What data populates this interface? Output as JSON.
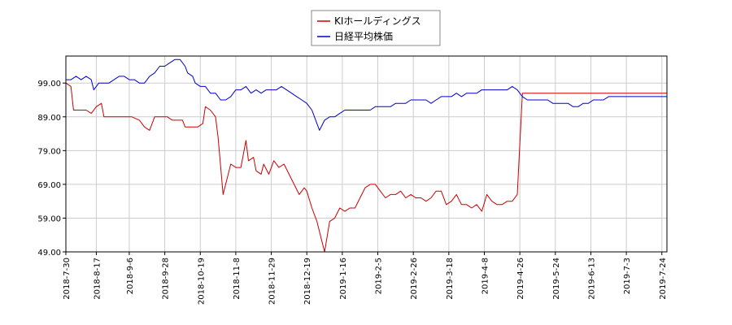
{
  "chart_data": {
    "type": "line",
    "title": "",
    "xlabel": "",
    "ylabel": "",
    "ylim": [
      49,
      107
    ],
    "y_ticks": [
      "49.00",
      "59.00",
      "69.00",
      "79.00",
      "89.00",
      "99.00"
    ],
    "y_tick_values": [
      49,
      59,
      69,
      79,
      89,
      99
    ],
    "x_ticks": [
      "2018-7-30",
      "2018-8-17",
      "2018-9-6",
      "2018-9-28",
      "2018-10-19",
      "2018-11-8",
      "2018-11-29",
      "2018-12-19",
      "2019-1-16",
      "2019-2-5",
      "2019-2-26",
      "2019-3-18",
      "2019-4-8",
      "2019-4-26",
      "2019-5-24",
      "2019-6-13",
      "2019-7-3",
      "2019-7-24"
    ],
    "x_tick_index": [
      0,
      12,
      25,
      39,
      53,
      67,
      81,
      95,
      109,
      123,
      137,
      151,
      165,
      179,
      193,
      207,
      221,
      235
    ],
    "x_count": 238,
    "grid": true,
    "legend_position": "top-center",
    "series": [
      {
        "name": "KIホールディングス",
        "color": "#cc0000",
        "points": [
          [
            0,
            99
          ],
          [
            2,
            98
          ],
          [
            3,
            91
          ],
          [
            6,
            91
          ],
          [
            8,
            91
          ],
          [
            10,
            90
          ],
          [
            12,
            92
          ],
          [
            14,
            93
          ],
          [
            15,
            89
          ],
          [
            18,
            89
          ],
          [
            20,
            89
          ],
          [
            23,
            89
          ],
          [
            26,
            89
          ],
          [
            29,
            88
          ],
          [
            31,
            86
          ],
          [
            33,
            85
          ],
          [
            35,
            89
          ],
          [
            38,
            89
          ],
          [
            40,
            89
          ],
          [
            42,
            88
          ],
          [
            44,
            88
          ],
          [
            46,
            88
          ],
          [
            47,
            86
          ],
          [
            50,
            86
          ],
          [
            52,
            86
          ],
          [
            54,
            87
          ],
          [
            55,
            92
          ],
          [
            57,
            91
          ],
          [
            59,
            89
          ],
          [
            60,
            83
          ],
          [
            62,
            66
          ],
          [
            64,
            72
          ],
          [
            65,
            75
          ],
          [
            67,
            74
          ],
          [
            69,
            74
          ],
          [
            71,
            82
          ],
          [
            72,
            76
          ],
          [
            74,
            77
          ],
          [
            75,
            73
          ],
          [
            77,
            72
          ],
          [
            78,
            75
          ],
          [
            80,
            72
          ],
          [
            82,
            76
          ],
          [
            84,
            74
          ],
          [
            86,
            75
          ],
          [
            88,
            72
          ],
          [
            90,
            69
          ],
          [
            92,
            66
          ],
          [
            94,
            68
          ],
          [
            95,
            67
          ],
          [
            97,
            62
          ],
          [
            99,
            58
          ],
          [
            101,
            52
          ],
          [
            102,
            49
          ],
          [
            104,
            58
          ],
          [
            106,
            59
          ],
          [
            108,
            62
          ],
          [
            110,
            61
          ],
          [
            112,
            62
          ],
          [
            114,
            62
          ],
          [
            116,
            65
          ],
          [
            118,
            68
          ],
          [
            120,
            69
          ],
          [
            122,
            69
          ],
          [
            124,
            67
          ],
          [
            126,
            65
          ],
          [
            128,
            66
          ],
          [
            130,
            66
          ],
          [
            132,
            67
          ],
          [
            134,
            65
          ],
          [
            136,
            66
          ],
          [
            138,
            65
          ],
          [
            140,
            65
          ],
          [
            142,
            64
          ],
          [
            144,
            65
          ],
          [
            146,
            67
          ],
          [
            148,
            67
          ],
          [
            150,
            63
          ],
          [
            152,
            64
          ],
          [
            154,
            66
          ],
          [
            156,
            63
          ],
          [
            158,
            63
          ],
          [
            160,
            62
          ],
          [
            162,
            63
          ],
          [
            164,
            61
          ],
          [
            166,
            66
          ],
          [
            168,
            64
          ],
          [
            170,
            63
          ],
          [
            172,
            63
          ],
          [
            174,
            64
          ],
          [
            176,
            64
          ],
          [
            178,
            66
          ],
          [
            180,
            96
          ],
          [
            183,
            96
          ],
          [
            186,
            96
          ],
          [
            189,
            96
          ],
          [
            192,
            96
          ],
          [
            195,
            96
          ],
          [
            198,
            96
          ],
          [
            201,
            96
          ],
          [
            204,
            96
          ],
          [
            207,
            96
          ],
          [
            210,
            96
          ],
          [
            213,
            96
          ],
          [
            216,
            96
          ],
          [
            219,
            96
          ],
          [
            222,
            96
          ],
          [
            225,
            96
          ],
          [
            228,
            96
          ],
          [
            231,
            96
          ],
          [
            234,
            96
          ],
          [
            237,
            96
          ]
        ]
      },
      {
        "name": "日経平均株価",
        "color": "#0000cc",
        "points": [
          [
            0,
            100
          ],
          [
            2,
            100
          ],
          [
            4,
            101
          ],
          [
            6,
            100
          ],
          [
            8,
            101
          ],
          [
            10,
            100
          ],
          [
            11,
            97
          ],
          [
            13,
            99
          ],
          [
            15,
            99
          ],
          [
            17,
            99
          ],
          [
            19,
            100
          ],
          [
            21,
            101
          ],
          [
            23,
            101
          ],
          [
            25,
            100
          ],
          [
            27,
            100
          ],
          [
            29,
            99
          ],
          [
            31,
            99
          ],
          [
            33,
            101
          ],
          [
            35,
            102
          ],
          [
            37,
            104
          ],
          [
            39,
            104
          ],
          [
            41,
            105
          ],
          [
            43,
            106
          ],
          [
            45,
            106
          ],
          [
            47,
            104
          ],
          [
            48,
            102
          ],
          [
            50,
            101
          ],
          [
            51,
            99
          ],
          [
            53,
            98
          ],
          [
            55,
            98
          ],
          [
            57,
            96
          ],
          [
            59,
            96
          ],
          [
            61,
            94
          ],
          [
            63,
            94
          ],
          [
            65,
            95
          ],
          [
            67,
            97
          ],
          [
            69,
            97
          ],
          [
            71,
            98
          ],
          [
            73,
            96
          ],
          [
            75,
            97
          ],
          [
            77,
            96
          ],
          [
            79,
            97
          ],
          [
            81,
            97
          ],
          [
            83,
            97
          ],
          [
            85,
            98
          ],
          [
            87,
            97
          ],
          [
            89,
            96
          ],
          [
            91,
            95
          ],
          [
            93,
            94
          ],
          [
            95,
            93
          ],
          [
            97,
            91
          ],
          [
            98,
            89
          ],
          [
            100,
            85
          ],
          [
            102,
            88
          ],
          [
            104,
            89
          ],
          [
            106,
            89
          ],
          [
            108,
            90
          ],
          [
            110,
            91
          ],
          [
            112,
            91
          ],
          [
            114,
            91
          ],
          [
            116,
            91
          ],
          [
            118,
            91
          ],
          [
            120,
            91
          ],
          [
            122,
            92
          ],
          [
            124,
            92
          ],
          [
            126,
            92
          ],
          [
            128,
            92
          ],
          [
            130,
            93
          ],
          [
            132,
            93
          ],
          [
            134,
            93
          ],
          [
            136,
            94
          ],
          [
            138,
            94
          ],
          [
            140,
            94
          ],
          [
            142,
            94
          ],
          [
            144,
            93
          ],
          [
            146,
            94
          ],
          [
            148,
            95
          ],
          [
            150,
            95
          ],
          [
            152,
            95
          ],
          [
            154,
            96
          ],
          [
            156,
            95
          ],
          [
            158,
            96
          ],
          [
            160,
            96
          ],
          [
            162,
            96
          ],
          [
            164,
            97
          ],
          [
            166,
            97
          ],
          [
            168,
            97
          ],
          [
            170,
            97
          ],
          [
            172,
            97
          ],
          [
            174,
            97
          ],
          [
            176,
            98
          ],
          [
            178,
            97
          ],
          [
            180,
            95
          ],
          [
            182,
            94
          ],
          [
            184,
            94
          ],
          [
            186,
            94
          ],
          [
            188,
            94
          ],
          [
            190,
            94
          ],
          [
            192,
            93
          ],
          [
            194,
            93
          ],
          [
            196,
            93
          ],
          [
            198,
            93
          ],
          [
            200,
            92
          ],
          [
            202,
            92
          ],
          [
            204,
            93
          ],
          [
            206,
            93
          ],
          [
            208,
            94
          ],
          [
            210,
            94
          ],
          [
            212,
            94
          ],
          [
            214,
            95
          ],
          [
            216,
            95
          ],
          [
            218,
            95
          ],
          [
            220,
            95
          ],
          [
            222,
            95
          ],
          [
            224,
            95
          ],
          [
            226,
            95
          ],
          [
            228,
            95
          ],
          [
            230,
            95
          ],
          [
            232,
            95
          ],
          [
            234,
            95
          ],
          [
            236,
            95
          ],
          [
            237,
            95
          ]
        ]
      }
    ]
  }
}
